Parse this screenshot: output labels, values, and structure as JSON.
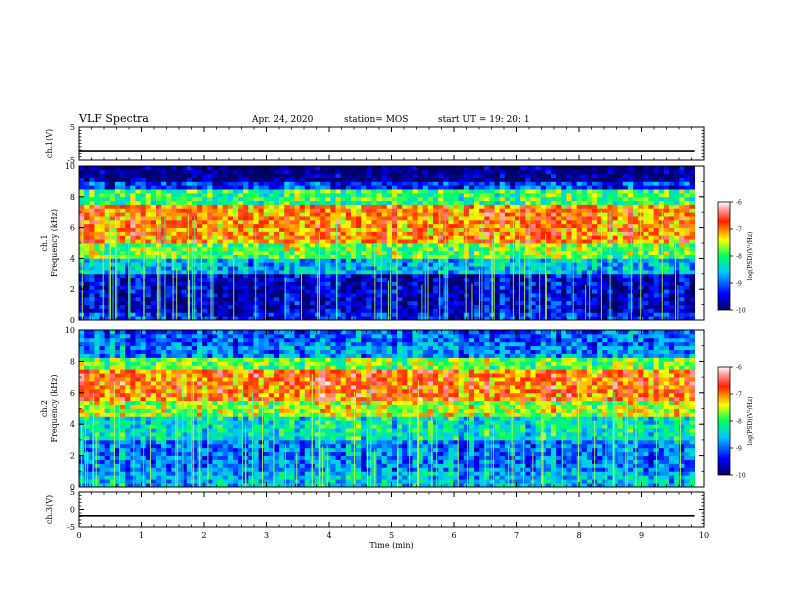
{
  "header": {
    "title": "VLF Spectra",
    "date": "Apr. 24, 2020",
    "station": "station= MOS",
    "start": "start  UT  =   19: 20: 1"
  },
  "chart_data": [
    {
      "type": "line",
      "panel": "ch1-voltage",
      "ylabel": "ch.1(V)",
      "ylim": [
        -5,
        5
      ],
      "yticks": [
        "5",
        "-5"
      ],
      "series": [
        {
          "x": [
            0,
            9.85
          ],
          "values": [
            -2.3,
            -2.3
          ]
        }
      ]
    },
    {
      "type": "heatmap",
      "panel": "ch1-spectrogram",
      "ylabel": "ch.1\nFrequency (kHz)",
      "ylim": [
        0,
        10
      ],
      "yticks": [
        "0",
        "2",
        "4",
        "6",
        "8",
        "10"
      ],
      "xlim": [
        0,
        10
      ],
      "data_xmax": 9.85,
      "colorbar": {
        "ticks": [
          "-6",
          "-7",
          "-8",
          "-9",
          "-10"
        ],
        "label": "log(PSD)(V²/Hz)",
        "range": [
          -10,
          -6
        ]
      },
      "bands": [
        {
          "f0": 0.0,
          "f1": 0.5,
          "level": -9.3
        },
        {
          "f0": 0.5,
          "f1": 3.0,
          "level": -9.6
        },
        {
          "f0": 3.0,
          "f1": 4.0,
          "level": -8.6
        },
        {
          "f0": 4.0,
          "f1": 5.0,
          "level": -7.8
        },
        {
          "f0": 5.0,
          "f1": 7.5,
          "level": -7.0
        },
        {
          "f0": 7.5,
          "f1": 8.5,
          "level": -8.0
        },
        {
          "f0": 8.5,
          "f1": 9.0,
          "level": -9.2
        },
        {
          "f0": 9.0,
          "f1": 10.0,
          "level": -9.95
        }
      ]
    },
    {
      "type": "heatmap",
      "panel": "ch2-spectrogram",
      "ylabel": "ch.2\nFrequency (kHz)",
      "ylim": [
        0,
        10
      ],
      "yticks": [
        "0",
        "2",
        "4",
        "6",
        "8",
        "10"
      ],
      "xlim": [
        0,
        10
      ],
      "data_xmax": 9.85,
      "colorbar": {
        "ticks": [
          "-6",
          "-7",
          "-8",
          "-9",
          "-10"
        ],
        "label": "log(PSD)(V²/Hz)",
        "range": [
          -10,
          -6
        ]
      },
      "bands": [
        {
          "f0": 0.0,
          "f1": 1.0,
          "level": -8.6
        },
        {
          "f0": 1.0,
          "f1": 3.0,
          "level": -8.9
        },
        {
          "f0": 3.0,
          "f1": 4.5,
          "level": -8.3
        },
        {
          "f0": 4.5,
          "f1": 5.5,
          "level": -7.6
        },
        {
          "f0": 5.5,
          "f1": 7.5,
          "level": -6.9
        },
        {
          "f0": 7.5,
          "f1": 8.2,
          "level": -7.8
        },
        {
          "f0": 8.2,
          "f1": 9.0,
          "level": -8.8
        },
        {
          "f0": 9.0,
          "f1": 10.0,
          "level": -9.0
        }
      ]
    },
    {
      "type": "line",
      "panel": "ch3-voltage",
      "ylabel": "ch.3(V)",
      "ylim": [
        -5,
        5
      ],
      "yticks": [
        "5",
        "0",
        "-5"
      ],
      "series": [
        {
          "x": [
            0,
            9.85
          ],
          "values": [
            -1.8,
            -1.8
          ]
        }
      ]
    }
  ],
  "xaxis": {
    "label": "Time  (min)",
    "ticks": [
      "0",
      "1",
      "2",
      "3",
      "4",
      "5",
      "6",
      "7",
      "8",
      "9",
      "10"
    ],
    "xlim": [
      0,
      10
    ]
  }
}
